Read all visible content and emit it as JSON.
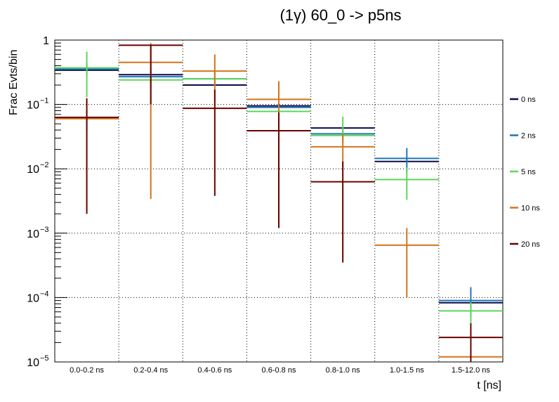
{
  "chart_data": {
    "type": "histogram",
    "title": "(1γ) 60_0 -> p5ns",
    "xlabel": "t [ns]",
    "ylabel": "Frac Evts/bin",
    "yscale": "log",
    "ylim": [
      1e-05,
      1
    ],
    "y_tick_labels": [
      {
        "base": "1",
        "exp": ""
      },
      {
        "base": "10",
        "exp": "−1"
      },
      {
        "base": "10",
        "exp": "−2"
      },
      {
        "base": "10",
        "exp": "−3"
      },
      {
        "base": "10",
        "exp": "−4"
      },
      {
        "base": "10",
        "exp": "−5"
      }
    ],
    "categories": [
      "0.0-0.2 ns",
      "0.2-0.4 ns",
      "0.4-0.6 ns",
      "0.6-0.8 ns",
      "0.8-1.0 ns",
      "1.0-1.5 ns",
      "1.5-12.0 ns"
    ],
    "series": [
      {
        "name": "0 ns",
        "color": "#0c0c4a",
        "values": [
          0.34,
          0.29,
          0.2,
          0.095,
          0.043,
          0.013,
          8.3e-05
        ],
        "err_lo": [
          0.34,
          0.29,
          0.2,
          0.095,
          0.043,
          0.013,
          8.3e-05
        ],
        "err_hi": [
          0.34,
          0.29,
          0.2,
          0.095,
          0.043,
          0.013,
          8.3e-05
        ]
      },
      {
        "name": "2 ns",
        "color": "#1f77b4",
        "values": [
          0.355,
          0.27,
          0.25,
          0.09,
          0.035,
          0.0145,
          9e-05
        ],
        "err_lo": [
          0.28,
          0.21,
          0.19,
          0.07,
          0.027,
          0.009,
          5e-05
        ],
        "err_hi": [
          0.45,
          0.35,
          0.32,
          0.115,
          0.045,
          0.021,
          0.000145
        ]
      },
      {
        "name": "5 ns",
        "color": "#5cd65c",
        "values": [
          0.37,
          0.24,
          0.25,
          0.078,
          0.033,
          0.0068,
          6.2e-05
        ],
        "err_lo": [
          0.13,
          0.18,
          0.19,
          0.06,
          0.025,
          0.0033,
          4e-05
        ],
        "err_hi": [
          0.66,
          0.31,
          0.32,
          0.1,
          0.065,
          0.0105,
          8.5e-05
        ]
      },
      {
        "name": "10 ns",
        "color": "#d2741e",
        "values": [
          0.06,
          0.45,
          0.33,
          0.12,
          0.022,
          0.00065,
          1.2e-05
        ],
        "err_lo": [
          0.04,
          0.0034,
          0.11,
          0.06,
          0.011,
          0.0001,
          1.2e-05
        ],
        "err_hi": [
          0.08,
          0.9,
          0.6,
          0.23,
          0.035,
          0.0012,
          1.2e-05
        ]
      },
      {
        "name": "20 ns",
        "color": "#6b0000",
        "values": [
          0.063,
          0.83,
          0.087,
          0.039,
          0.0063,
          null,
          2.4e-05
        ],
        "err_lo": [
          0.002,
          0.1,
          0.0038,
          0.0012,
          0.00035,
          null,
          1e-05
        ],
        "err_hi": [
          0.125,
          0.83,
          0.17,
          0.075,
          0.013,
          null,
          4e-05
        ]
      }
    ],
    "legend_position": "right",
    "grid": true
  }
}
